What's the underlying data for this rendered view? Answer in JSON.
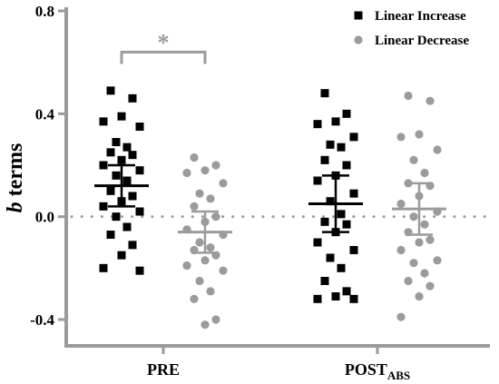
{
  "chart_data": {
    "type": "scatter",
    "ylabel_italic": "b",
    "ylabel_rest": " terms",
    "ylim": [
      -0.4,
      0.8
    ],
    "yticks": [
      {
        "v": 0.8,
        "label": "0.8"
      },
      {
        "v": 0.4,
        "label": "0.4"
      },
      {
        "v": 0.0,
        "label": "0.0"
      },
      {
        "v": -0.4,
        "label": "-0.4"
      }
    ],
    "categories": [
      {
        "main": "PRE",
        "sub": ""
      },
      {
        "main": "POST",
        "sub": "ABS"
      }
    ],
    "reference_line": 0.0,
    "significance": {
      "label": "*",
      "from_series": 0,
      "to_series": 1,
      "category": 0,
      "y": 0.64
    },
    "legend_position": "top-right",
    "series": [
      {
        "name": "Linear Increase",
        "marker": "square",
        "color": "#000000",
        "groups": [
          {
            "mean": 0.12,
            "sem": 0.08,
            "values": [
              0.49,
              0.46,
              0.39,
              0.37,
              0.35,
              0.29,
              0.27,
              0.25,
              0.24,
              0.22,
              0.2,
              0.18,
              0.16,
              0.14,
              0.1,
              0.08,
              0.06,
              0.04,
              0.02,
              0.0,
              -0.04,
              -0.07,
              -0.11,
              -0.15,
              -0.2,
              -0.21
            ]
          },
          {
            "mean": 0.05,
            "sem": 0.11,
            "values": [
              0.48,
              0.4,
              0.37,
              0.36,
              0.31,
              0.28,
              0.27,
              0.22,
              0.2,
              0.16,
              0.14,
              0.09,
              0.06,
              0.01,
              -0.02,
              -0.03,
              -0.06,
              -0.1,
              -0.13,
              -0.16,
              -0.2,
              -0.25,
              -0.29,
              -0.31,
              -0.32,
              -0.32
            ]
          }
        ]
      },
      {
        "name": "Linear Decrease",
        "marker": "circle",
        "color": "#9b9b9b",
        "groups": [
          {
            "mean": -0.06,
            "sem": 0.08,
            "values": [
              0.23,
              0.2,
              0.18,
              0.17,
              0.13,
              0.09,
              0.07,
              0.04,
              0.0,
              -0.02,
              -0.05,
              -0.07,
              -0.1,
              -0.12,
              -0.13,
              -0.15,
              -0.17,
              -0.19,
              -0.21,
              -0.25,
              -0.29,
              -0.32,
              -0.4,
              -0.42
            ]
          },
          {
            "mean": 0.03,
            "sem": 0.1,
            "values": [
              0.47,
              0.45,
              0.32,
              0.31,
              0.26,
              0.22,
              0.17,
              0.13,
              0.12,
              0.08,
              0.05,
              0.02,
              0.0,
              -0.03,
              -0.06,
              -0.09,
              -0.1,
              -0.13,
              -0.17,
              -0.18,
              -0.22,
              -0.25,
              -0.27,
              -0.31,
              -0.39
            ]
          }
        ]
      }
    ]
  }
}
